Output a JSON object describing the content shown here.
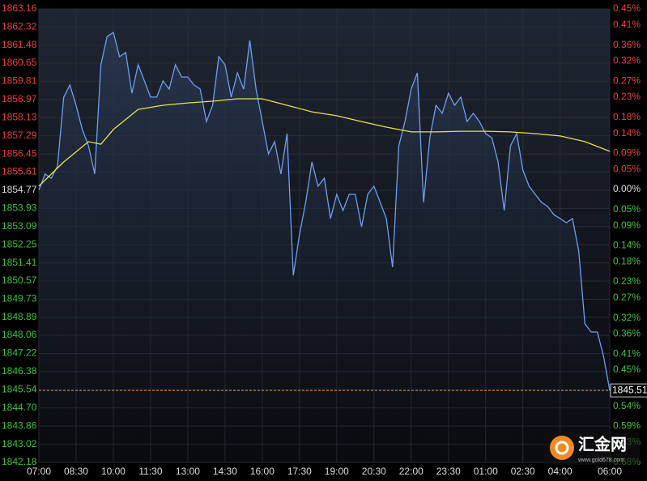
{
  "chart_data": {
    "type": "line",
    "xlim": [
      0,
      1380
    ],
    "xticks": [
      {
        "value": 0,
        "label": "07:00"
      },
      {
        "value": 90,
        "label": "08:30"
      },
      {
        "value": 180,
        "label": "10:00"
      },
      {
        "value": 270,
        "label": "11:30"
      },
      {
        "value": 360,
        "label": "13:00"
      },
      {
        "value": 450,
        "label": "14:30"
      },
      {
        "value": 540,
        "label": "16:00"
      },
      {
        "value": 630,
        "label": "17:30"
      },
      {
        "value": 720,
        "label": "19:00"
      },
      {
        "value": 810,
        "label": "20:30"
      },
      {
        "value": 900,
        "label": "22:00"
      },
      {
        "value": 990,
        "label": "23:30"
      },
      {
        "value": 1080,
        "label": "01:00"
      },
      {
        "value": 1170,
        "label": "02:30"
      },
      {
        "value": 1260,
        "label": "04:00"
      },
      {
        "value": 1380,
        "label": "06:00"
      }
    ],
    "ylim": [
      1842.18,
      1863.16
    ],
    "yticks": [
      1863.16,
      1862.32,
      1861.48,
      1860.65,
      1859.81,
      1858.97,
      1858.13,
      1857.29,
      1856.45,
      1855.61,
      1854.77,
      1853.93,
      1853.09,
      1852.25,
      1851.41,
      1850.57,
      1849.73,
      1848.89,
      1848.06,
      1847.22,
      1846.38,
      1845.54,
      {
        "value": 1844.7,
        "label": "1844.70"
      },
      1843.86,
      1843.02,
      1842.18
    ],
    "y2lim": [
      -0.68,
      0.45
    ],
    "y2ticks": [
      {
        "value": 0.45,
        "label": "0.45%"
      },
      {
        "value": 0.41,
        "label": "0.41%"
      },
      {
        "value": 0.36,
        "label": "0.36%"
      },
      {
        "value": 0.32,
        "label": "0.32%"
      },
      {
        "value": 0.27,
        "label": "0.27%"
      },
      {
        "value": 0.23,
        "label": "0.23%"
      },
      {
        "value": 0.18,
        "label": "0.18%"
      },
      {
        "value": 0.14,
        "label": "0.14%"
      },
      {
        "value": 0.09,
        "label": "0.09%"
      },
      {
        "value": 0.05,
        "label": "0.05%"
      },
      {
        "value": 0,
        "label": "0.00%"
      },
      {
        "value": -0.05,
        "label": "0.05%"
      },
      {
        "value": -0.09,
        "label": "0.09%"
      },
      {
        "value": -0.14,
        "label": "0.14%"
      },
      {
        "value": -0.18,
        "label": "0.18%"
      },
      {
        "value": -0.23,
        "label": "0.23%"
      },
      {
        "value": -0.27,
        "label": "0.27%"
      },
      {
        "value": -0.32,
        "label": "0.32%"
      },
      {
        "value": -0.36,
        "label": "0.36%"
      },
      {
        "value": -0.41,
        "label": "0.41%"
      },
      {
        "value": -0.45,
        "label": "0.45%"
      },
      {
        "value": -0.5,
        "label": "0.50%"
      },
      {
        "value": -0.54,
        "label": "0.54%"
      },
      {
        "value": -0.59,
        "label": "0.59%"
      },
      {
        "value": -0.63,
        "label": "0.63%"
      },
      {
        "value": -0.68,
        "label": "0.68%"
      }
    ],
    "tick_colors": {
      "up": "#e8413e",
      "flat": "#dddddd",
      "down": "#3ec23e"
    },
    "grid": true,
    "series": [
      {
        "color": "#6f9ff0",
        "area": true,
        "x": [
          0,
          15,
          30,
          45,
          60,
          75,
          90,
          105,
          120,
          135,
          150,
          165,
          180,
          195,
          210,
          225,
          240,
          255,
          270,
          285,
          300,
          315,
          330,
          345,
          360,
          375,
          390,
          405,
          420,
          435,
          450,
          465,
          480,
          495,
          510,
          525,
          540,
          555,
          570,
          585,
          600,
          615,
          630,
          645,
          660,
          675,
          690,
          705,
          720,
          735,
          750,
          765,
          780,
          795,
          810,
          825,
          840,
          855,
          870,
          885,
          900,
          915,
          930,
          945,
          960,
          975,
          990,
          1005,
          1020,
          1035,
          1050,
          1065,
          1080,
          1095,
          1110,
          1125,
          1140,
          1155,
          1170,
          1185,
          1200,
          1215,
          1230,
          1245,
          1260,
          1275,
          1290,
          1305,
          1320,
          1335,
          1350,
          1365,
          1380
        ],
        "values": [
          1854.77,
          1855.52,
          1855.33,
          1855.89,
          1859.08,
          1859.64,
          1858.7,
          1857.58,
          1856.83,
          1855.52,
          1860.58,
          1861.89,
          1862.07,
          1860.95,
          1861.14,
          1859.26,
          1860.58,
          1859.83,
          1859.08,
          1859.08,
          1859.83,
          1859.45,
          1860.58,
          1860.01,
          1860.01,
          1859.64,
          1859.45,
          1857.95,
          1858.7,
          1860.95,
          1860.58,
          1859.08,
          1860.2,
          1859.45,
          1861.7,
          1859.45,
          1857.95,
          1856.45,
          1857.02,
          1855.52,
          1857.39,
          1850.83,
          1852.71,
          1854.21,
          1856.08,
          1854.96,
          1855.33,
          1853.46,
          1854.58,
          1853.83,
          1854.58,
          1854.58,
          1853.08,
          1854.58,
          1854.96,
          1854.21,
          1853.46,
          1851.21,
          1856.83,
          1857.95,
          1859.45,
          1860.2,
          1854.21,
          1857.2,
          1858.7,
          1858.33,
          1859.26,
          1858.7,
          1859.08,
          1857.95,
          1858.33,
          1857.95,
          1857.39,
          1857.2,
          1856.08,
          1853.83,
          1856.83,
          1857.39,
          1855.71,
          1854.96,
          1854.58,
          1854.21,
          1854.02,
          1853.64,
          1853.46,
          1853.27,
          1853.46,
          1851.96,
          1848.59,
          1848.21,
          1848.21,
          1847.09,
          1845.51
        ]
      },
      {
        "color": "#e8e04a",
        "area": false,
        "x": [
          0,
          60,
          120,
          150,
          180,
          240,
          300,
          360,
          420,
          480,
          540,
          600,
          660,
          720,
          780,
          840,
          900,
          960,
          1020,
          1080,
          1140,
          1200,
          1260,
          1320,
          1380
        ],
        "values": [
          1854.96,
          1856.08,
          1857.02,
          1856.9,
          1857.58,
          1858.51,
          1858.7,
          1858.81,
          1858.89,
          1859.0,
          1859.0,
          1858.7,
          1858.4,
          1858.22,
          1857.95,
          1857.69,
          1857.47,
          1857.47,
          1857.5,
          1857.5,
          1857.47,
          1857.39,
          1857.28,
          1857.02,
          1856.57
        ]
      }
    ],
    "last_price": 1845.51,
    "watermark": {
      "title": "汇金网",
      "url": "www.gold678.com"
    }
  }
}
